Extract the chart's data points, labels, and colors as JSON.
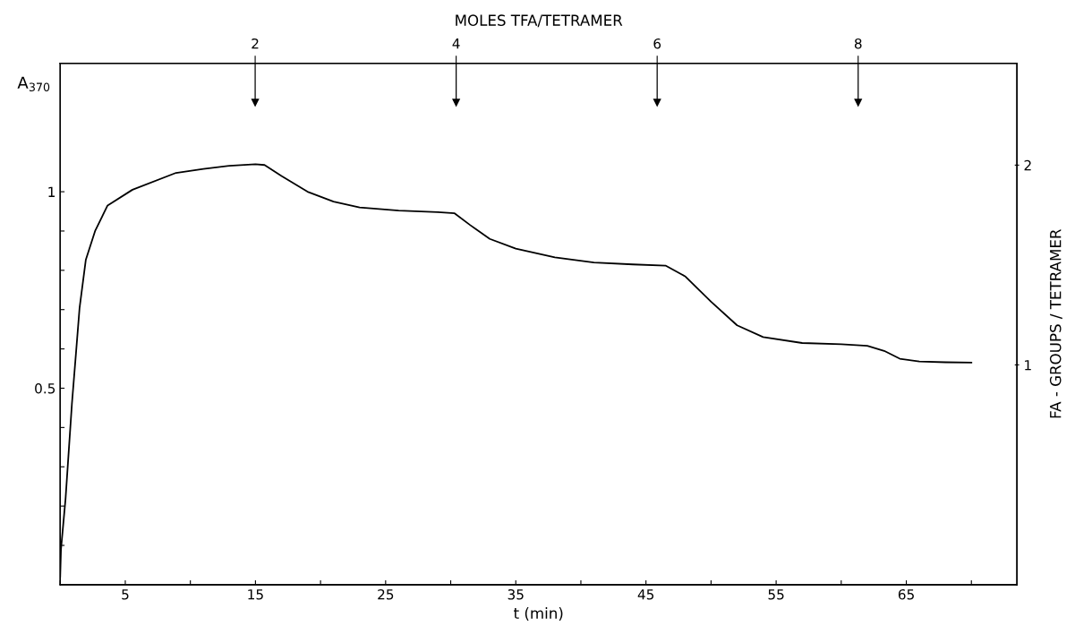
{
  "chart_data": {
    "type": "line",
    "xlabel": "t (min)",
    "ylabel": "A$_{370}$",
    "y2label": "FA - GROUPS / TETRAMER",
    "x": [
      0,
      0.06,
      0.41,
      0.9,
      1.2,
      1.49,
      1.97,
      2.68,
      3.64,
      5.55,
      8.9,
      11,
      13,
      15,
      15.7,
      17,
      19,
      21,
      23,
      26,
      29,
      30.3,
      31.5,
      33,
      35,
      38,
      41,
      44,
      46.5,
      48,
      50,
      52,
      54,
      57,
      60,
      62,
      63.3,
      64.5,
      66,
      68,
      70
    ],
    "series": [
      {
        "color": "#000000",
        "values": [
          0.02,
          0.09,
          0.218,
          0.46,
          0.584,
          0.705,
          0.827,
          0.9,
          0.965,
          1.005,
          1.048,
          1.058,
          1.066,
          1.07,
          1.068,
          1.04,
          1.0,
          0.975,
          0.96,
          0.952,
          0.948,
          0.945,
          0.915,
          0.88,
          0.855,
          0.833,
          0.82,
          0.815,
          0.812,
          0.785,
          0.72,
          0.66,
          0.63,
          0.615,
          0.612,
          0.608,
          0.595,
          0.575,
          0.568,
          0.566,
          0.565
        ]
      }
    ],
    "xlim": [
      0,
      73.5
    ],
    "ylim": [
      0,
      1.327
    ],
    "y2lim": [
      -0.1,
      2.51
    ],
    "xticks": [
      {
        "value": 0,
        "label": null
      },
      5,
      {
        "value": 10,
        "label": null
      },
      15,
      {
        "value": 20,
        "label": null
      },
      25,
      {
        "value": 30,
        "label": null
      },
      35,
      {
        "value": 40,
        "label": null
      },
      45,
      {
        "value": 50,
        "label": null
      },
      55,
      {
        "value": 60,
        "label": null
      },
      65,
      {
        "value": 70,
        "label": null
      }
    ],
    "yticks": [
      {
        "value": 0.1,
        "label": null
      },
      {
        "value": 0.2,
        "label": null
      },
      {
        "value": 0.3,
        "label": null
      },
      {
        "value": 0.4,
        "label": null
      },
      0.5,
      {
        "value": 0.6,
        "label": null
      },
      {
        "value": 0.7,
        "label": null
      },
      {
        "value": 0.8,
        "label": null
      },
      {
        "value": 0.9,
        "label": null
      },
      1
    ],
    "y2ticks": [
      1,
      2
    ],
    "x2label": "MOLES TFA/TETRAMER",
    "x2lim": [
      0.06,
      9.58
    ],
    "x2ticks": [
      2,
      4,
      6,
      8
    ],
    "grid": false,
    "legend": false,
    "marker": "none",
    "line_style": "solid"
  }
}
